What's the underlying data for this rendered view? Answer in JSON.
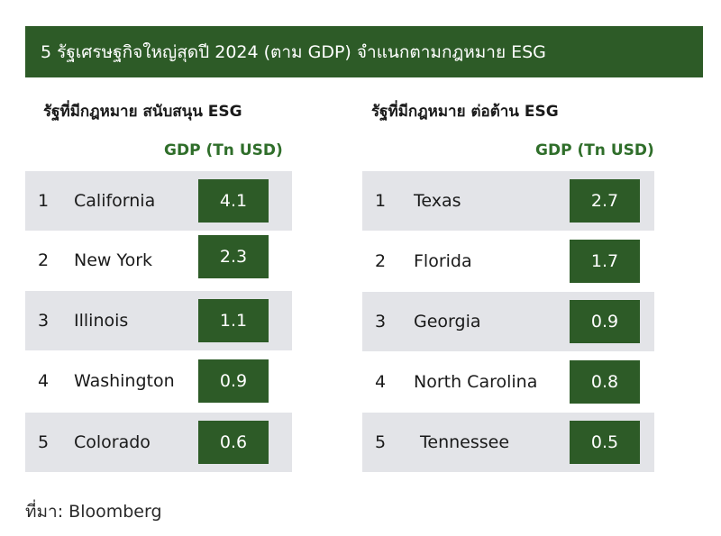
{
  "title": "5 รัฐเศรษฐกิจใหญ่สุดปี 2024 (ตาม GDP) จำแนกตามกฎหมาย ESG",
  "value_header": "GDP (Tn USD)",
  "colors": {
    "bar": "#2d5b27",
    "header_text": "#2f6e2a",
    "row_shade": "#e3e4e8"
  },
  "source": {
    "label": "ที่มา:",
    "value": "Bloomberg"
  },
  "chart_data": [
    {
      "type": "table",
      "title": "รัฐที่มีกฎหมาย สนับสนุน ESG",
      "value_label": "GDP (Tn USD)",
      "rows": [
        {
          "rank": "1",
          "state": "California",
          "gdp": "4.1"
        },
        {
          "rank": "2",
          "state": "New York",
          "gdp": "2.3"
        },
        {
          "rank": "3",
          "state": "Illinois",
          "gdp": "1.1"
        },
        {
          "rank": "4",
          "state": "Washington",
          "gdp": "0.9"
        },
        {
          "rank": "5",
          "state": "Colorado",
          "gdp": "0.6"
        }
      ]
    },
    {
      "type": "table",
      "title": "รัฐที่มีกฎหมาย ต่อต้าน ESG",
      "value_label": "GDP (Tn USD)",
      "rows": [
        {
          "rank": "1",
          "state": "Texas",
          "gdp": "2.7"
        },
        {
          "rank": "2",
          "state": "Florida",
          "gdp": "1.7"
        },
        {
          "rank": "3",
          "state": "Georgia",
          "gdp": "0.9"
        },
        {
          "rank": "4",
          "state": "North Carolina",
          "gdp": "0.8"
        },
        {
          "rank": "5",
          "state": "Tennessee",
          "gdp": "0.5"
        }
      ]
    }
  ]
}
